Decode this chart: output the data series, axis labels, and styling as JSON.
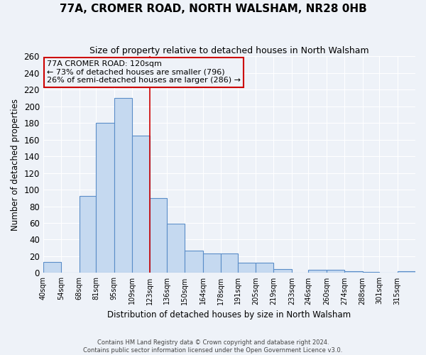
{
  "title": "77A, CROMER ROAD, NORTH WALSHAM, NR28 0HB",
  "subtitle": "Size of property relative to detached houses in North Walsham",
  "xlabel": "Distribution of detached houses by size in North Walsham",
  "ylabel": "Number of detached properties",
  "bar_labels": [
    "40sqm",
    "54sqm",
    "68sqm",
    "81sqm",
    "95sqm",
    "109sqm",
    "123sqm",
    "136sqm",
    "150sqm",
    "164sqm",
    "178sqm",
    "191sqm",
    "205sqm",
    "219sqm",
    "233sqm",
    "246sqm",
    "260sqm",
    "274sqm",
    "288sqm",
    "301sqm",
    "315sqm"
  ],
  "bar_heights": [
    13,
    0,
    92,
    180,
    210,
    165,
    90,
    59,
    27,
    23,
    23,
    12,
    12,
    5,
    0,
    4,
    4,
    2,
    1,
    0,
    2
  ],
  "bin_edges": [
    40,
    54,
    68,
    81,
    95,
    109,
    123,
    136,
    150,
    164,
    178,
    191,
    205,
    219,
    233,
    246,
    260,
    274,
    288,
    301,
    315,
    329
  ],
  "bar_color": "#c5d9f0",
  "bar_edge_color": "#5a8dc8",
  "property_line_x": 123,
  "annotation_text": "77A CROMER ROAD: 120sqm\n← 73% of detached houses are smaller (796)\n26% of semi-detached houses are larger (286) →",
  "annotation_box_edge": "#cc0000",
  "vline_color": "#cc0000",
  "footer1": "Contains HM Land Registry data © Crown copyright and database right 2024.",
  "footer2": "Contains public sector information licensed under the Open Government Licence v3.0.",
  "ylim": [
    0,
    260
  ],
  "yticks": [
    0,
    20,
    40,
    60,
    80,
    100,
    120,
    140,
    160,
    180,
    200,
    220,
    240,
    260
  ],
  "bg_color": "#eef2f8",
  "grid_color": "#ffffff",
  "title_fontsize": 11,
  "subtitle_fontsize": 9
}
